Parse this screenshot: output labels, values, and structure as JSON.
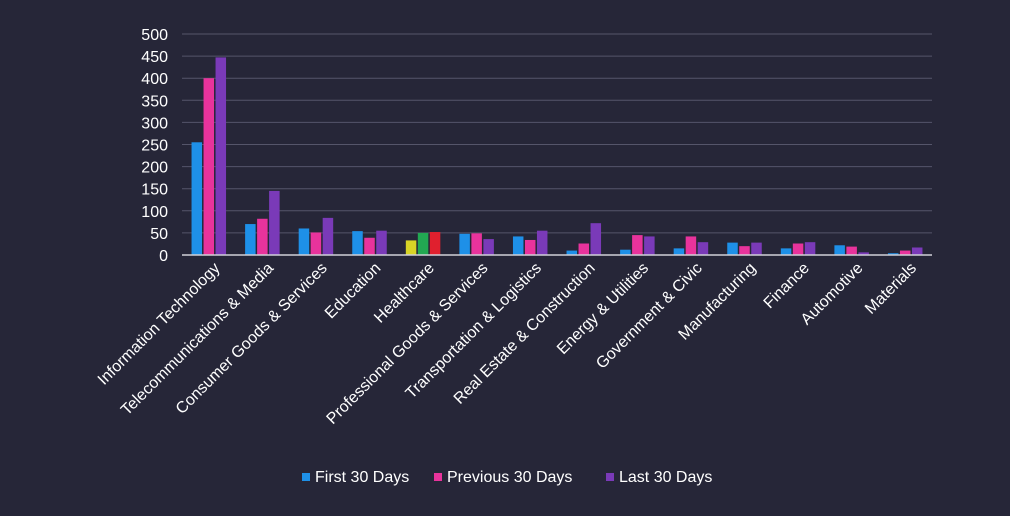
{
  "chart_data": {
    "type": "bar",
    "title": "",
    "xlabel": "",
    "ylabel": "",
    "ylim": [
      0,
      500
    ],
    "yticks": [
      0,
      50,
      100,
      150,
      200,
      250,
      300,
      350,
      400,
      450,
      500
    ],
    "grid": true,
    "legend_position": "bottom",
    "categories": [
      "Information Technology",
      "Telecommunications & Media",
      "Consumer Goods &  Services",
      "Education",
      "Healthcare",
      "Professional Goods & Services",
      "Transportation & Logistics",
      "Real Estate & Construction",
      "Energy & Utilities",
      "Government & Civic",
      "Manufacturing",
      "Finance",
      "Automotive",
      "Materials"
    ],
    "series": [
      {
        "name": "First 30 Days",
        "color": "#1E90E8",
        "values": [
          255,
          70,
          60,
          54,
          33,
          48,
          42,
          10,
          12,
          15,
          28,
          15,
          22,
          4
        ]
      },
      {
        "name": "Previous 30 Days",
        "color": "#E8339C",
        "values": [
          400,
          82,
          51,
          39,
          50,
          49,
          34,
          26,
          45,
          42,
          20,
          26,
          19,
          10
        ]
      },
      {
        "name": "Last 30 Days",
        "color": "#7A3AB8",
        "values": [
          447,
          145,
          84,
          55,
          52,
          36,
          55,
          72,
          42,
          29,
          28,
          29,
          6,
          17
        ]
      }
    ],
    "special_colors": {
      "healthcare": [
        "#D8D426",
        "#22A852",
        "#E0202E"
      ]
    },
    "styles": {
      "background": "#262638",
      "gridline": "#55556a",
      "axis": "#d0d0d8",
      "text": "#ffffff"
    }
  }
}
